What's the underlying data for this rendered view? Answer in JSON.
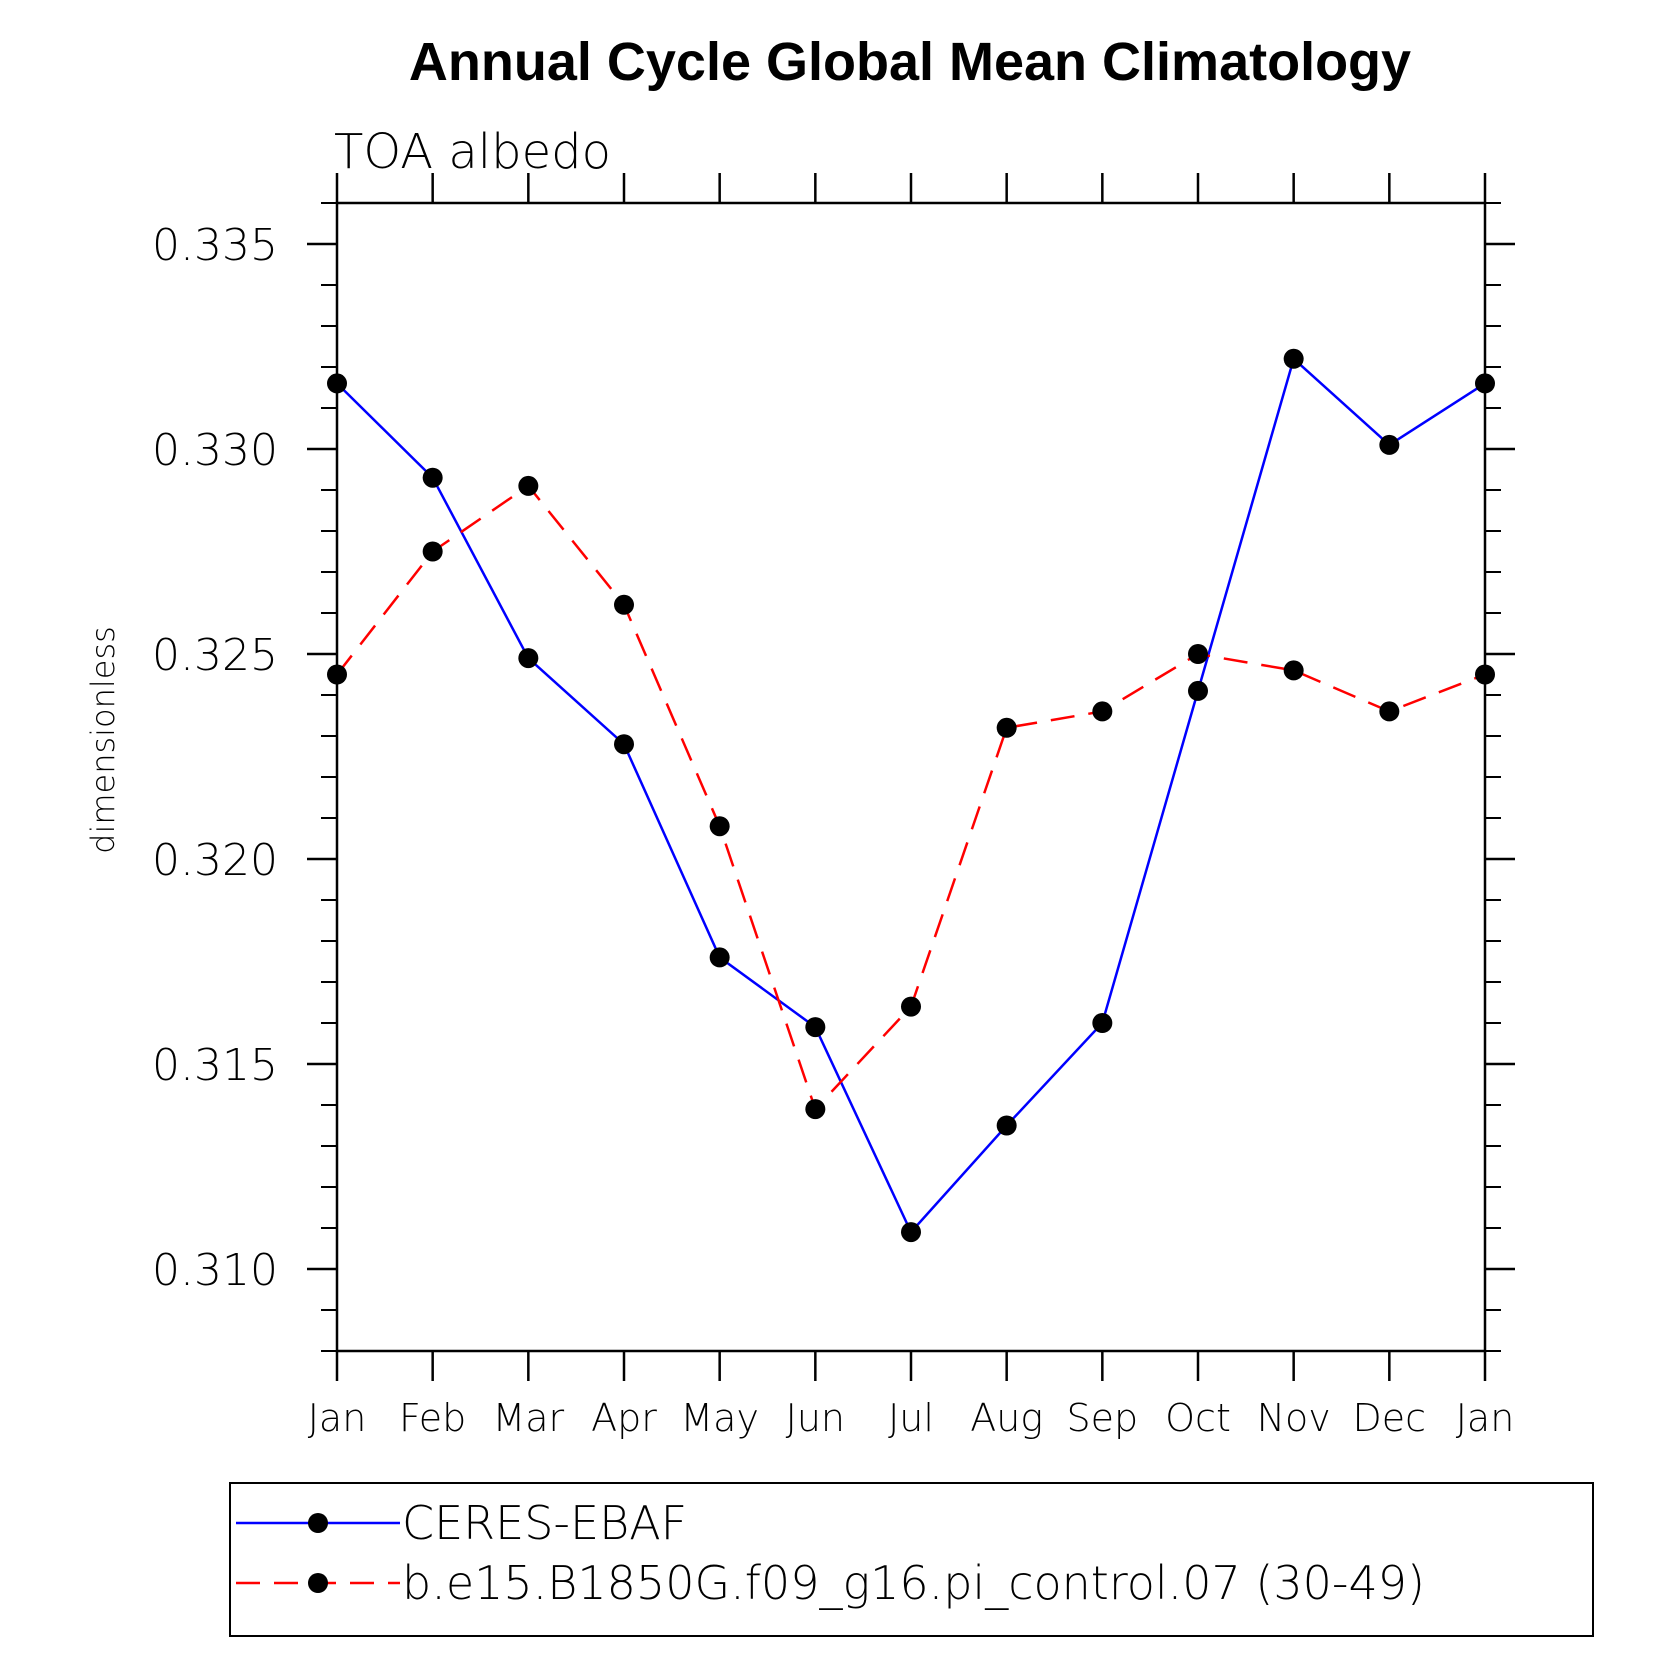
{
  "chart_data": {
    "type": "line",
    "title": "Annual Cycle Global Mean Climatology",
    "subtitle": "TOA albedo",
    "xlabel": "",
    "ylabel": "dimensionless",
    "categories": [
      "Jan",
      "Feb",
      "Mar",
      "Apr",
      "May",
      "Jun",
      "Jul",
      "Aug",
      "Sep",
      "Oct",
      "Nov",
      "Dec",
      "Jan"
    ],
    "ylim": [
      0.308,
      0.336
    ],
    "yticks": [
      "0.310",
      "0.315",
      "0.320",
      "0.325",
      "0.330",
      "0.335"
    ],
    "grid": false,
    "legend_position": "bottom",
    "series": [
      {
        "name": "CERES-EBAF",
        "color": "#0000ff",
        "style": "solid",
        "marker": "filled-circle",
        "values": [
          0.3316,
          0.3293,
          0.3249,
          0.3228,
          0.3176,
          0.3159,
          0.3109,
          0.3135,
          0.316,
          0.3241,
          0.3322,
          0.3301,
          0.3316
        ]
      },
      {
        "name": "b.e15.B1850G.f09_g16.pi_control.07 (30-49)",
        "color": "#ff0000",
        "style": "dashed",
        "marker": "filled-circle",
        "values": [
          0.3245,
          0.3275,
          0.3291,
          0.3262,
          0.3208,
          0.3139,
          0.3164,
          0.3232,
          0.3236,
          0.325,
          0.3246,
          0.3236,
          0.3245
        ]
      }
    ]
  }
}
